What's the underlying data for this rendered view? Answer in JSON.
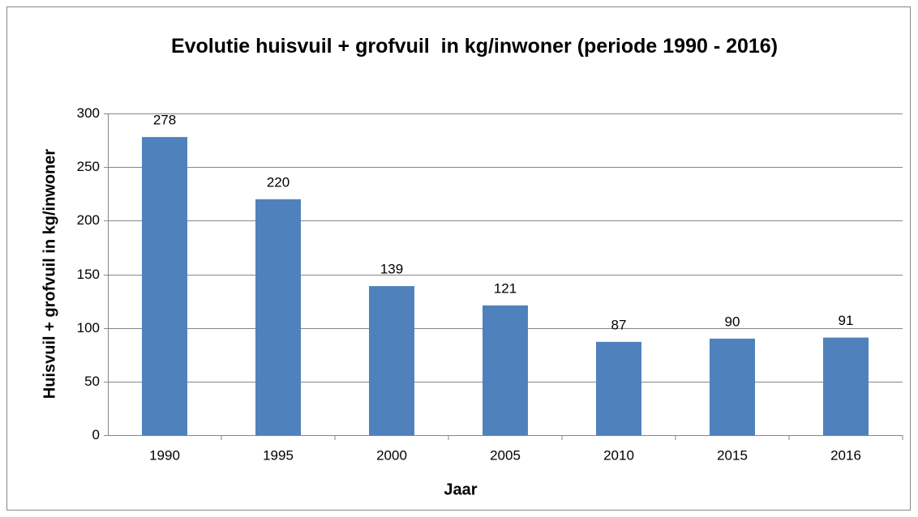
{
  "chart_data": {
    "type": "bar",
    "title": "Evolutie huisvuil + grofvuil  in kg/inwoner (periode 1990 - 2016)",
    "x_label": "Jaar",
    "y_label": "Huisvuil + grofvuil in kg/inwoner",
    "categories": [
      "1990",
      "1995",
      "2000",
      "2005",
      "2010",
      "2015",
      "2016"
    ],
    "values": [
      278,
      220,
      139,
      121,
      87,
      90,
      91
    ],
    "color": "#4f81bd",
    "ylim": [
      0,
      300
    ],
    "yticks": [
      0,
      50,
      100,
      150,
      200,
      250,
      300
    ],
    "grid": true
  }
}
